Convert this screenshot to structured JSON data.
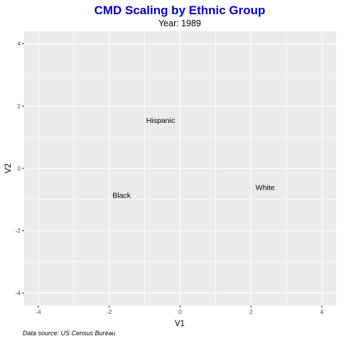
{
  "chart_data": {
    "type": "scatter",
    "title": "CMD Scaling by Ethnic Group",
    "subtitle": "Year: 1989",
    "xlabel": "V1",
    "ylabel": "V2",
    "caption": "Data source: US Census Bureau",
    "xlim": [
      -4.4,
      4.4
    ],
    "ylim": [
      -4.4,
      4.4
    ],
    "xticks": [
      -4,
      -2,
      0,
      2,
      4
    ],
    "yticks": [
      -4,
      -2,
      0,
      2,
      4
    ],
    "xtick_labels": [
      "-4",
      "-2",
      "0",
      "2",
      "4"
    ],
    "ytick_labels": [
      "-4",
      "-2",
      "0",
      "2",
      "4"
    ],
    "grid": true,
    "points": [
      {
        "label": "Hispanic",
        "x": -0.55,
        "y": 1.55
      },
      {
        "label": "Black",
        "x": -1.65,
        "y": -0.85
      },
      {
        "label": "White",
        "x": 2.4,
        "y": -0.6
      }
    ],
    "colors": {
      "title": "#0000CC",
      "panel": "#EBEBEB",
      "grid": "#FFFFFF"
    }
  }
}
